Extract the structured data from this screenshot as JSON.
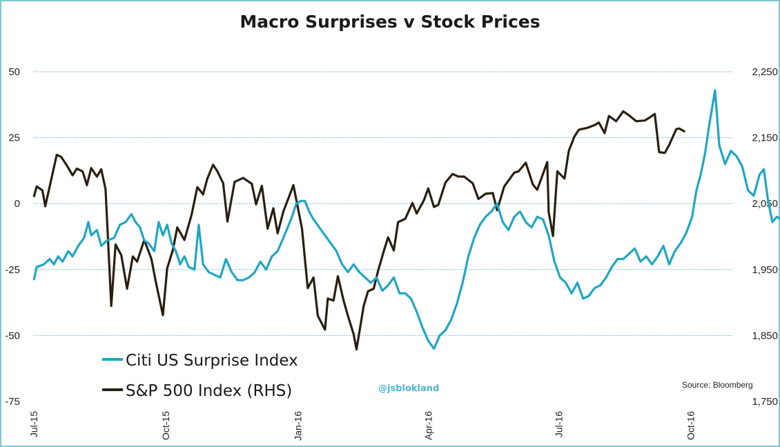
{
  "chart_data": {
    "type": "line",
    "title": "Macro Surprises v Stock Prices",
    "source": "Source: Bloomberg",
    "watermark": "@jsblokland",
    "colors": {
      "citi": "#1fa6c4",
      "spx": "#2a1e0f",
      "grid": "#5fb8c9",
      "border": "#7fc6d3",
      "watermark": "#4fb6cf"
    },
    "x_start": "2015-07-01",
    "x_end": "2016-11-01",
    "x_ticks": [
      {
        "date": "2015-07-01",
        "label": "Jul-15"
      },
      {
        "date": "2015-10-01",
        "label": "Oct-15"
      },
      {
        "date": "2016-01-01",
        "label": "Jan-16"
      },
      {
        "date": "2016-04-01",
        "label": "Apr-16"
      },
      {
        "date": "2016-07-01",
        "label": "Jul-16"
      },
      {
        "date": "2016-10-01",
        "label": "Oct-16"
      }
    ],
    "left_axis": {
      "min": -75,
      "max": 50,
      "ticks": [
        {
          "value": 50,
          "label": "50"
        },
        {
          "value": 25,
          "label": "25"
        },
        {
          "value": 0,
          "label": "0"
        },
        {
          "value": -25,
          "label": "-25"
        },
        {
          "value": -50,
          "label": "-50"
        },
        {
          "value": -75,
          "label": "-75"
        }
      ]
    },
    "right_axis": {
      "min": 1750,
      "max": 2250,
      "ticks": [
        {
          "value": 2250,
          "label": "2,250"
        },
        {
          "value": 2150,
          "label": "2,150"
        },
        {
          "value": 2050,
          "label": "2,050"
        },
        {
          "value": 1950,
          "label": "1,950"
        },
        {
          "value": 1850,
          "label": "1,850"
        },
        {
          "value": 1750,
          "label": "1,750"
        }
      ]
    },
    "grid": true,
    "legend_position": "bottom-left",
    "series": [
      {
        "name": "Citi US Surprise Index",
        "axis": "left",
        "points": [
          [
            "2015-07-01",
            -29
          ],
          [
            "2015-07-03",
            -24
          ],
          [
            "2015-07-08",
            -23
          ],
          [
            "2015-07-12",
            -21
          ],
          [
            "2015-07-15",
            -23
          ],
          [
            "2015-07-18",
            -20
          ],
          [
            "2015-07-21",
            -22
          ],
          [
            "2015-07-25",
            -18
          ],
          [
            "2015-07-28",
            -20
          ],
          [
            "2015-08-01",
            -16
          ],
          [
            "2015-08-05",
            -13
          ],
          [
            "2015-08-08",
            -7
          ],
          [
            "2015-08-10",
            -12
          ],
          [
            "2015-08-14",
            -10
          ],
          [
            "2015-08-17",
            -16
          ],
          [
            "2015-08-21",
            -14
          ],
          [
            "2015-08-26",
            -13
          ],
          [
            "2015-08-30",
            -8
          ],
          [
            "2015-09-03",
            -7
          ],
          [
            "2015-09-07",
            -4
          ],
          [
            "2015-09-10",
            -7
          ],
          [
            "2015-09-13",
            -9
          ],
          [
            "2015-09-16",
            -14
          ],
          [
            "2015-09-19",
            -15
          ],
          [
            "2015-09-23",
            -18
          ],
          [
            "2015-09-26",
            -7
          ],
          [
            "2015-09-29",
            -12
          ],
          [
            "2015-10-02",
            -8
          ],
          [
            "2015-10-05",
            -15
          ],
          [
            "2015-10-08",
            -18
          ],
          [
            "2015-10-11",
            -23
          ],
          [
            "2015-10-14",
            -20
          ],
          [
            "2015-10-17",
            -24
          ],
          [
            "2015-10-21",
            -25
          ],
          [
            "2015-10-24",
            -8
          ],
          [
            "2015-10-27",
            -23
          ],
          [
            "2015-10-31",
            -26
          ],
          [
            "2015-11-04",
            -27
          ],
          [
            "2015-11-08",
            -28
          ],
          [
            "2015-11-12",
            -21
          ],
          [
            "2015-11-16",
            -26
          ],
          [
            "2015-11-20",
            -29
          ],
          [
            "2015-11-24",
            -29
          ],
          [
            "2015-11-28",
            -28
          ],
          [
            "2015-12-02",
            -26
          ],
          [
            "2015-12-06",
            -22
          ],
          [
            "2015-12-10",
            -25
          ],
          [
            "2015-12-14",
            -20
          ],
          [
            "2015-12-18",
            -18
          ],
          [
            "2015-12-22",
            -13
          ],
          [
            "2015-12-25",
            -9
          ],
          [
            "2015-12-28",
            -5
          ],
          [
            "2015-12-31",
            0
          ],
          [
            "2016-01-03",
            1
          ],
          [
            "2016-01-06",
            1
          ],
          [
            "2016-01-09",
            -3
          ],
          [
            "2016-01-12",
            -6
          ],
          [
            "2016-01-16",
            -9
          ],
          [
            "2016-01-20",
            -12
          ],
          [
            "2016-01-24",
            -15
          ],
          [
            "2016-01-28",
            -18
          ],
          [
            "2016-02-01",
            -23
          ],
          [
            "2016-02-05",
            -26
          ],
          [
            "2016-02-09",
            -23
          ],
          [
            "2016-02-13",
            -26
          ],
          [
            "2016-02-17",
            -28
          ],
          [
            "2016-02-21",
            -30
          ],
          [
            "2016-02-25",
            -28
          ],
          [
            "2016-02-29",
            -33
          ],
          [
            "2016-03-04",
            -31
          ],
          [
            "2016-03-08",
            -28
          ],
          [
            "2016-03-12",
            -34
          ],
          [
            "2016-03-16",
            -34
          ],
          [
            "2016-03-20",
            -36
          ],
          [
            "2016-03-24",
            -41
          ],
          [
            "2016-03-28",
            -47
          ],
          [
            "2016-04-01",
            -52
          ],
          [
            "2016-04-05",
            -55
          ],
          [
            "2016-04-09",
            -50
          ],
          [
            "2016-04-13",
            -48
          ],
          [
            "2016-04-17",
            -44
          ],
          [
            "2016-04-21",
            -38
          ],
          [
            "2016-04-25",
            -30
          ],
          [
            "2016-04-29",
            -20
          ],
          [
            "2016-05-03",
            -13
          ],
          [
            "2016-05-07",
            -8
          ],
          [
            "2016-05-11",
            -5
          ],
          [
            "2016-05-15",
            -3
          ],
          [
            "2016-05-19",
            0
          ],
          [
            "2016-05-23",
            -7
          ],
          [
            "2016-05-27",
            -10
          ],
          [
            "2016-05-31",
            -5
          ],
          [
            "2016-06-04",
            -3
          ],
          [
            "2016-06-08",
            -7
          ],
          [
            "2016-06-12",
            -9
          ],
          [
            "2016-06-16",
            -5
          ],
          [
            "2016-06-20",
            -6
          ],
          [
            "2016-06-24",
            -12
          ],
          [
            "2016-06-28",
            -22
          ],
          [
            "2016-07-02",
            -28
          ],
          [
            "2016-07-06",
            -30
          ],
          [
            "2016-07-10",
            -34
          ],
          [
            "2016-07-14",
            -30
          ],
          [
            "2016-07-18",
            -36
          ],
          [
            "2016-07-22",
            -35
          ],
          [
            "2016-07-26",
            -32
          ],
          [
            "2016-07-30",
            -31
          ],
          [
            "2016-08-03",
            -28
          ],
          [
            "2016-08-07",
            -24
          ],
          [
            "2016-08-11",
            -21
          ],
          [
            "2016-08-15",
            -21
          ],
          [
            "2016-08-19",
            -19
          ],
          [
            "2016-08-23",
            -17
          ],
          [
            "2016-08-27",
            -22
          ],
          [
            "2016-08-31",
            -20
          ],
          [
            "2016-09-04",
            -23
          ],
          [
            "2016-09-08",
            -20
          ],
          [
            "2016-09-12",
            -16
          ],
          [
            "2016-09-16",
            -23
          ],
          [
            "2016-09-20",
            -18
          ],
          [
            "2016-09-24",
            -15
          ],
          [
            "2016-09-28",
            -11
          ],
          [
            "2016-10-02",
            -5
          ],
          [
            "2016-10-05",
            5
          ],
          [
            "2016-10-08",
            11
          ],
          [
            "2016-10-11",
            19
          ],
          [
            "2016-10-14",
            30
          ],
          [
            "2016-10-18",
            43
          ],
          [
            "2016-10-21",
            22
          ],
          [
            "2016-10-25",
            15
          ],
          [
            "2016-10-29",
            20
          ],
          [
            "2016-11-02",
            18
          ],
          [
            "2016-11-06",
            14
          ],
          [
            "2016-11-10",
            5
          ],
          [
            "2016-11-14",
            3
          ],
          [
            "2016-11-18",
            11
          ],
          [
            "2016-11-21",
            13
          ],
          [
            "2016-11-24",
            1
          ],
          [
            "2016-11-27",
            -7
          ],
          [
            "2016-11-30",
            -5
          ],
          [
            "2016-12-03",
            -6
          ]
        ]
      },
      {
        "name": "S&P 500 Index (RHS)",
        "axis": "right",
        "points": [
          [
            "2015-07-01",
            2060
          ],
          [
            "2015-07-03",
            2076
          ],
          [
            "2015-07-07",
            2070
          ],
          [
            "2015-07-09",
            2046
          ],
          [
            "2015-07-13",
            2085
          ],
          [
            "2015-07-17",
            2124
          ],
          [
            "2015-07-20",
            2121
          ],
          [
            "2015-07-24",
            2108
          ],
          [
            "2015-07-28",
            2093
          ],
          [
            "2015-07-31",
            2103
          ],
          [
            "2015-08-04",
            2099
          ],
          [
            "2015-08-07",
            2078
          ],
          [
            "2015-08-10",
            2104
          ],
          [
            "2015-08-14",
            2091
          ],
          [
            "2015-08-17",
            2102
          ],
          [
            "2015-08-20",
            2072
          ],
          [
            "2015-08-24",
            1895
          ],
          [
            "2015-08-27",
            1988
          ],
          [
            "2015-08-31",
            1972
          ],
          [
            "2015-09-04",
            1921
          ],
          [
            "2015-09-08",
            1970
          ],
          [
            "2015-09-11",
            1962
          ],
          [
            "2015-09-16",
            1995
          ],
          [
            "2015-09-21",
            1966
          ],
          [
            "2015-09-24",
            1932
          ],
          [
            "2015-09-29",
            1881
          ],
          [
            "2015-10-02",
            1952
          ],
          [
            "2015-10-06",
            1980
          ],
          [
            "2015-10-09",
            2014
          ],
          [
            "2015-10-14",
            1995
          ],
          [
            "2015-10-19",
            2033
          ],
          [
            "2015-10-23",
            2075
          ],
          [
            "2015-10-27",
            2064
          ],
          [
            "2015-10-30",
            2088
          ],
          [
            "2015-11-03",
            2109
          ],
          [
            "2015-11-06",
            2099
          ],
          [
            "2015-11-10",
            2081
          ],
          [
            "2015-11-13",
            2023
          ],
          [
            "2015-11-18",
            2083
          ],
          [
            "2015-11-24",
            2089
          ],
          [
            "2015-11-30",
            2080
          ],
          [
            "2015-12-03",
            2049
          ],
          [
            "2015-12-07",
            2077
          ],
          [
            "2015-12-11",
            2012
          ],
          [
            "2015-12-15",
            2043
          ],
          [
            "2015-12-18",
            2005
          ],
          [
            "2015-12-22",
            2038
          ],
          [
            "2015-12-29",
            2078
          ],
          [
            "2016-01-04",
            2012
          ],
          [
            "2016-01-08",
            1922
          ],
          [
            "2016-01-12",
            1938
          ],
          [
            "2016-01-15",
            1880
          ],
          [
            "2016-01-20",
            1859
          ],
          [
            "2016-01-22",
            1906
          ],
          [
            "2016-01-26",
            1903
          ],
          [
            "2016-01-29",
            1940
          ],
          [
            "2016-02-02",
            1903
          ],
          [
            "2016-02-05",
            1880
          ],
          [
            "2016-02-09",
            1852
          ],
          [
            "2016-02-11",
            1829
          ],
          [
            "2016-02-16",
            1895
          ],
          [
            "2016-02-19",
            1917
          ],
          [
            "2016-02-23",
            1921
          ],
          [
            "2016-02-26",
            1948
          ],
          [
            "2016-03-01",
            1978
          ],
          [
            "2016-03-04",
            1999
          ],
          [
            "2016-03-08",
            1979
          ],
          [
            "2016-03-11",
            2022
          ],
          [
            "2016-03-16",
            2027
          ],
          [
            "2016-03-21",
            2051
          ],
          [
            "2016-03-24",
            2035
          ],
          [
            "2016-03-29",
            2055
          ],
          [
            "2016-04-01",
            2073
          ],
          [
            "2016-04-05",
            2045
          ],
          [
            "2016-04-08",
            2048
          ],
          [
            "2016-04-13",
            2082
          ],
          [
            "2016-04-18",
            2095
          ],
          [
            "2016-04-22",
            2091
          ],
          [
            "2016-04-26",
            2091
          ],
          [
            "2016-05-02",
            2081
          ],
          [
            "2016-05-06",
            2057
          ],
          [
            "2016-05-11",
            2065
          ],
          [
            "2016-05-16",
            2066
          ],
          [
            "2016-05-19",
            2040
          ],
          [
            "2016-05-24",
            2076
          ],
          [
            "2016-05-31",
            2097
          ],
          [
            "2016-06-03",
            2099
          ],
          [
            "2016-06-08",
            2112
          ],
          [
            "2016-06-13",
            2079
          ],
          [
            "2016-06-16",
            2071
          ],
          [
            "2016-06-23",
            2113
          ],
          [
            "2016-06-24",
            2037
          ],
          [
            "2016-06-27",
            2001
          ],
          [
            "2016-06-30",
            2099
          ],
          [
            "2016-07-05",
            2088
          ],
          [
            "2016-07-08",
            2130
          ],
          [
            "2016-07-12",
            2152
          ],
          [
            "2016-07-15",
            2162
          ],
          [
            "2016-07-21",
            2165
          ],
          [
            "2016-07-26",
            2169
          ],
          [
            "2016-07-29",
            2173
          ],
          [
            "2016-08-02",
            2157
          ],
          [
            "2016-08-05",
            2183
          ],
          [
            "2016-08-10",
            2175
          ],
          [
            "2016-08-15",
            2190
          ],
          [
            "2016-08-19",
            2184
          ],
          [
            "2016-08-24",
            2175
          ],
          [
            "2016-08-30",
            2176
          ],
          [
            "2016-09-02",
            2180
          ],
          [
            "2016-09-06",
            2186
          ],
          [
            "2016-09-09",
            2128
          ],
          [
            "2016-09-13",
            2127
          ],
          [
            "2016-09-16",
            2139
          ],
          [
            "2016-09-21",
            2163
          ],
          [
            "2016-09-23",
            2164
          ],
          [
            "2016-09-27",
            2159
          ]
        ]
      }
    ]
  }
}
